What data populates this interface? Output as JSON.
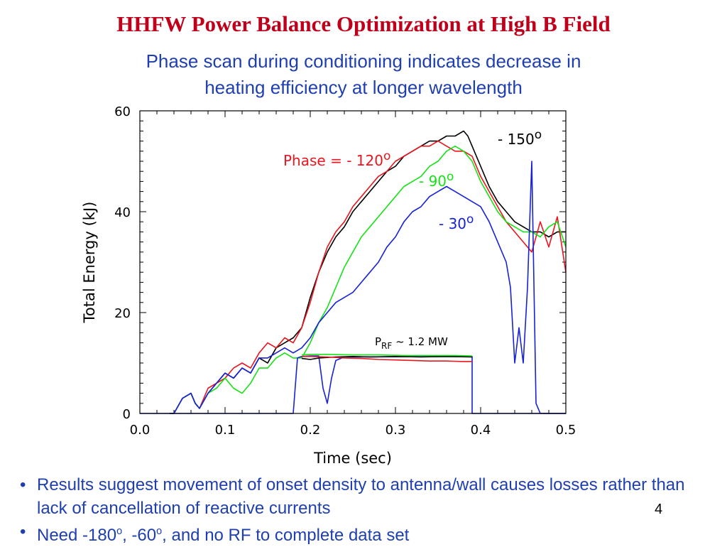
{
  "slide": {
    "title": "HHFW Power Balance Optimization at High B Field",
    "subtitle_line1": "Phase scan during conditioning indicates decrease in",
    "subtitle_line2": "heating efficiency at longer wavelength",
    "page_number": "4"
  },
  "bullets": [
    {
      "text": "Results suggest movement of onset density to antenna/wall causes losses rather than lack of cancellation of reactive currents"
    },
    {
      "prefix": "Need -180",
      "sup1": "o",
      "mid": ",  -60",
      "sup2": "o",
      "suffix": ", and no RF to complete data set"
    }
  ],
  "chart_data": {
    "type": "line",
    "xlabel": "Time (sec)",
    "ylabel": "Total Energy (kJ)",
    "xlim": [
      0.0,
      0.5
    ],
    "ylim": [
      0,
      60
    ],
    "xticks": [
      "0.0",
      "0.1",
      "0.2",
      "0.3",
      "0.4",
      "0.5"
    ],
    "yticks": [
      "0",
      "20",
      "40",
      "60"
    ],
    "grid": false,
    "colors": {
      "-150": "#000000",
      "-120": "#e8161e",
      "-90": "#17e117",
      "-30": "#1722d6"
    },
    "annotations": [
      {
        "series": "-150",
        "text": "- 150",
        "sup": "o",
        "color": "#000000"
      },
      {
        "series": "-120",
        "text": "Phase = - 120",
        "sup": "o",
        "color": "#e8161e"
      },
      {
        "series": "-90",
        "text": "- 90",
        "sup": "o",
        "color": "#17e117"
      },
      {
        "series": "-30",
        "text": "- 30",
        "sup": "o",
        "color": "#1722d6"
      }
    ],
    "prf_label": {
      "main": "P",
      "sub": "RF",
      "rest": " ~ 1.2 MW"
    },
    "series": [
      {
        "key": "-150",
        "color": "#000000",
        "x": [
          0.035,
          0.04,
          0.05,
          0.06,
          0.065,
          0.07,
          0.08,
          0.09,
          0.1,
          0.11,
          0.12,
          0.13,
          0.14,
          0.15,
          0.16,
          0.17,
          0.18,
          0.19,
          0.2,
          0.21,
          0.22,
          0.23,
          0.24,
          0.25,
          0.26,
          0.27,
          0.28,
          0.29,
          0.3,
          0.31,
          0.32,
          0.33,
          0.34,
          0.35,
          0.36,
          0.37,
          0.38,
          0.385,
          0.39,
          0.4,
          0.41,
          0.42,
          0.43,
          0.44,
          0.45,
          0.46,
          0.47,
          0.48,
          0.49,
          0.5
        ],
        "y": [
          0,
          0,
          3,
          4,
          2,
          1,
          4,
          6,
          8,
          7,
          9,
          8,
          11,
          10,
          13,
          14,
          15,
          17,
          23,
          28,
          32,
          35,
          37,
          40,
          42,
          44,
          46,
          48,
          49,
          51,
          52,
          53,
          54,
          54,
          55,
          55,
          56,
          55,
          53,
          49,
          45,
          42,
          40,
          38,
          37,
          36,
          36,
          35,
          36,
          36
        ]
      },
      {
        "key": "-120",
        "color": "#e8161e",
        "x": [
          0.035,
          0.04,
          0.05,
          0.06,
          0.065,
          0.07,
          0.08,
          0.09,
          0.1,
          0.11,
          0.12,
          0.13,
          0.14,
          0.15,
          0.16,
          0.17,
          0.18,
          0.19,
          0.2,
          0.21,
          0.22,
          0.23,
          0.24,
          0.25,
          0.26,
          0.27,
          0.28,
          0.29,
          0.3,
          0.31,
          0.32,
          0.33,
          0.34,
          0.35,
          0.36,
          0.37,
          0.38,
          0.39,
          0.4,
          0.41,
          0.42,
          0.43,
          0.44,
          0.45,
          0.46,
          0.47,
          0.48,
          0.49,
          0.5
        ],
        "y": [
          0,
          0,
          3,
          4,
          2,
          1,
          5,
          6,
          7,
          9,
          10,
          9,
          12,
          14,
          13,
          15,
          14,
          17,
          22,
          28,
          33,
          36,
          38,
          41,
          43,
          45,
          47,
          48,
          50,
          51,
          52,
          53,
          53,
          54,
          53,
          52,
          52,
          51,
          47,
          44,
          41,
          38,
          36,
          34,
          32,
          38,
          33,
          39,
          28
        ]
      },
      {
        "key": "-90",
        "color": "#17e117",
        "x": [
          0.035,
          0.04,
          0.05,
          0.06,
          0.065,
          0.07,
          0.08,
          0.09,
          0.1,
          0.11,
          0.12,
          0.13,
          0.14,
          0.15,
          0.16,
          0.17,
          0.18,
          0.19,
          0.2,
          0.21,
          0.22,
          0.23,
          0.24,
          0.25,
          0.26,
          0.27,
          0.28,
          0.29,
          0.3,
          0.31,
          0.32,
          0.33,
          0.34,
          0.35,
          0.36,
          0.37,
          0.38,
          0.39,
          0.4,
          0.41,
          0.42,
          0.43,
          0.44,
          0.45,
          0.46,
          0.47,
          0.48,
          0.49,
          0.5
        ],
        "y": [
          0,
          0,
          3,
          4,
          2,
          1,
          4,
          5,
          7,
          5,
          4,
          6,
          9,
          9,
          11,
          12,
          11,
          11,
          14,
          18,
          21,
          25,
          29,
          32,
          35,
          37,
          39,
          41,
          43,
          45,
          46,
          47,
          49,
          50,
          52,
          53,
          52,
          50,
          46,
          43,
          40,
          38,
          37,
          36,
          36,
          35,
          37,
          38,
          33
        ]
      },
      {
        "key": "-30",
        "color": "#1722d6",
        "x": [
          0.035,
          0.04,
          0.05,
          0.06,
          0.065,
          0.07,
          0.08,
          0.09,
          0.1,
          0.11,
          0.12,
          0.13,
          0.14,
          0.15,
          0.16,
          0.17,
          0.18,
          0.19,
          0.2,
          0.21,
          0.22,
          0.23,
          0.24,
          0.25,
          0.26,
          0.27,
          0.28,
          0.29,
          0.3,
          0.31,
          0.32,
          0.33,
          0.34,
          0.35,
          0.36,
          0.37,
          0.38,
          0.39,
          0.4,
          0.41,
          0.42,
          0.43,
          0.435,
          0.44,
          0.445,
          0.45,
          0.455,
          0.46,
          0.465,
          0.47,
          0.48,
          0.49,
          0.5
        ],
        "y": [
          0,
          0,
          3,
          4,
          2,
          1,
          4,
          6,
          8,
          7,
          9,
          8,
          11,
          11,
          12,
          13,
          12,
          13,
          15,
          18,
          20,
          22,
          23,
          24,
          26,
          28,
          30,
          33,
          35,
          38,
          40,
          41,
          43,
          44,
          45,
          44,
          43,
          42,
          41,
          38,
          34,
          30,
          25,
          10,
          17,
          10,
          25,
          50,
          2,
          0,
          0,
          0,
          0
        ]
      },
      {
        "key": "prf-blue",
        "color": "#1722d6",
        "x": [
          0.0,
          0.18,
          0.185,
          0.19,
          0.2,
          0.21,
          0.215,
          0.22,
          0.225,
          0.23,
          0.24,
          0.39,
          0.39,
          0.5
        ],
        "y": [
          0,
          0,
          11,
          11.3,
          11.4,
          11.4,
          5,
          2,
          7,
          10.5,
          11.2,
          11.3,
          0,
          0
        ]
      },
      {
        "key": "prf-black",
        "color": "#000000",
        "x": [
          0.19,
          0.2,
          0.21,
          0.22,
          0.23,
          0.25,
          0.27,
          0.3,
          0.33,
          0.36,
          0.39
        ],
        "y": [
          10.9,
          10.7,
          11.0,
          11.1,
          11.2,
          11.3,
          11.2,
          11.3,
          11.2,
          11.3,
          11.2
        ]
      },
      {
        "key": "prf-red",
        "color": "#e8161e",
        "x": [
          0.19,
          0.2,
          0.22,
          0.24,
          0.26,
          0.28,
          0.3,
          0.32,
          0.34,
          0.36,
          0.38,
          0.39
        ],
        "y": [
          11.3,
          11.3,
          11.2,
          11.0,
          10.9,
          10.7,
          10.6,
          10.5,
          10.4,
          10.4,
          10.3,
          10.3
        ]
      },
      {
        "key": "prf-green",
        "color": "#17e117",
        "x": [
          0.19,
          0.2,
          0.22,
          0.25,
          0.28,
          0.31,
          0.34,
          0.37,
          0.39
        ],
        "y": [
          11.6,
          11.7,
          11.7,
          11.6,
          11.6,
          11.5,
          11.5,
          11.5,
          11.4
        ]
      }
    ]
  }
}
